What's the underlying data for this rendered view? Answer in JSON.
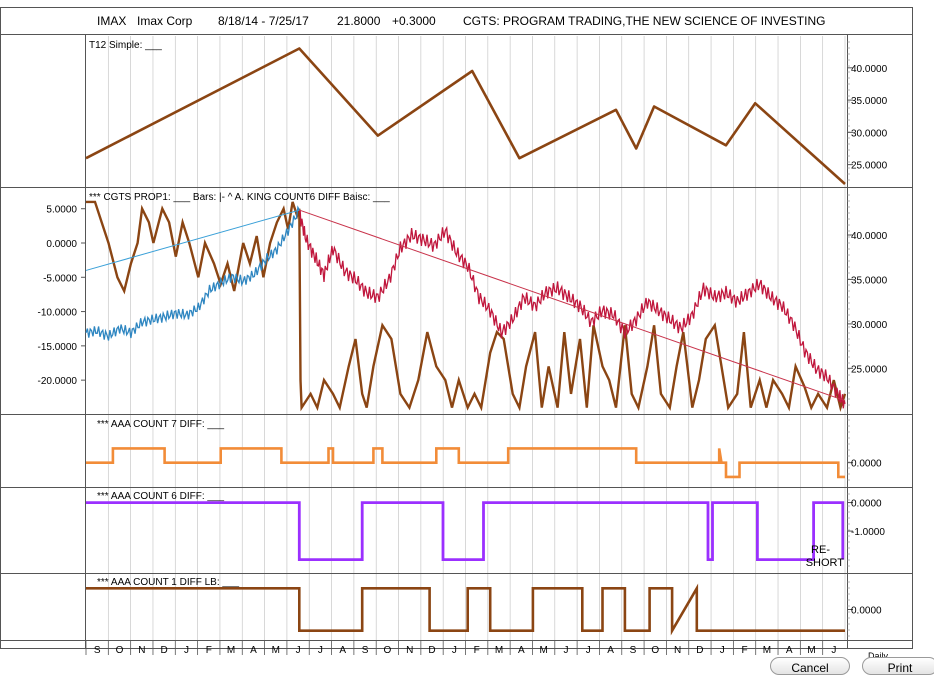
{
  "header": {
    "symbol": "IMAX",
    "company": "Imax Corp",
    "date_range": "8/18/14 - 7/25/17",
    "price": "21.8000",
    "change": "+0.3000",
    "title": "CGTS: PROGRAM TRADING,THE NEW SCIENCE OF INVESTING"
  },
  "colors": {
    "brown": "#8B4513",
    "crimson": "#C0163C",
    "blue": "#2E86C1",
    "orange": "#F28C38",
    "purple": "#9B30FF",
    "trend_red": "#C8324A",
    "trend_blue": "#3AA0D8"
  },
  "x_axis": {
    "labels": [
      "S",
      "O",
      "N",
      "D",
      "J",
      "F",
      "M",
      "A",
      "M",
      "J",
      "J",
      "A",
      "S",
      "O",
      "N",
      "D",
      "J",
      "F",
      "M",
      "A",
      "M",
      "J",
      "J",
      "A",
      "S",
      "O",
      "N",
      "D",
      "J",
      "F",
      "M",
      "A",
      "M",
      "J"
    ],
    "corner_label": "Daily"
  },
  "buttons": {
    "cancel": "Cancel",
    "print": "Print"
  },
  "chart_data": [
    {
      "id": "t12",
      "type": "line",
      "title": "T12 Simple: ___",
      "ylim": [
        22,
        44
      ],
      "ticks": [
        "40.0000",
        "35.0000",
        "30.0000",
        "25.0000"
      ],
      "tick_values": [
        40,
        35,
        30,
        25
      ],
      "series": [
        {
          "x": [
            0,
            9.5,
            13.0,
            17.2,
            19.3,
            23.6,
            24.5,
            25.3,
            28.5,
            29.8,
            33.8
          ],
          "y": [
            26.0,
            43.0,
            29.5,
            39.5,
            26.0,
            33.5,
            27.5,
            34.0,
            28.0,
            34.5,
            22.0
          ]
        }
      ]
    },
    {
      "id": "prop1",
      "type": "line",
      "title": "*** CGTS PROP1: ___   Bars: |-   ^ A. KING COUNT6 DIFF Baisc: ___",
      "left_ylim": [
        -24.5,
        7
      ],
      "right_ylim": [
        20.2,
        44.5
      ],
      "left_ticks": [
        "5.0000",
        "0.0000",
        "-5.0000",
        "-10.0000",
        "-15.0000",
        "-20.0000"
      ],
      "left_tick_values": [
        5,
        0,
        -5,
        -10,
        -15,
        -20
      ],
      "right_ticks": [
        "40.0000",
        "35.0000",
        "30.0000",
        "25.0000"
      ],
      "right_tick_values": [
        40,
        35,
        30,
        25
      ],
      "price_before": {
        "x": [
          0,
          0.5,
          1.0,
          1.5,
          2.0,
          2.5,
          3.0,
          3.5,
          4.0,
          4.5,
          5.0,
          5.5,
          6.0,
          6.5,
          7.0,
          7.5,
          8.0,
          8.5,
          9.0,
          9.5
        ],
        "y": [
          29.0,
          29.2,
          28.6,
          29.5,
          29.0,
          30.2,
          30.5,
          30.8,
          31.2,
          31.0,
          31.8,
          33.8,
          34.6,
          35.3,
          34.8,
          35.6,
          37.2,
          38.4,
          40.5,
          42.8
        ]
      },
      "price_after": {
        "x": [
          9.5,
          9.8,
          10.2,
          10.6,
          11.0,
          11.5,
          12.0,
          12.5,
          13.0,
          13.5,
          14.0,
          14.5,
          15.0,
          15.5,
          16.0,
          16.5,
          17.0,
          17.5,
          18.0,
          18.5,
          19.0,
          19.5,
          20.0,
          20.5,
          21.0,
          21.5,
          22.0,
          22.5,
          23.0,
          23.5,
          24.0,
          24.5,
          25.0,
          25.5,
          26.0,
          26.5,
          27.0,
          27.5,
          28.0,
          28.5,
          29.0,
          29.5,
          30.0,
          30.5,
          31.0,
          31.5,
          32.0,
          32.5,
          33.0,
          33.5,
          33.8
        ],
        "y": [
          42.5,
          39.5,
          37.5,
          35.5,
          38.5,
          36.0,
          35.0,
          33.5,
          33.0,
          35.0,
          38.5,
          40.0,
          39.5,
          38.8,
          40.5,
          38.0,
          36.5,
          33.0,
          31.5,
          29.0,
          30.5,
          33.0,
          32.0,
          33.6,
          34.0,
          33.0,
          32.0,
          30.2,
          31.5,
          31.0,
          29.0,
          30.5,
          32.5,
          31.5,
          30.5,
          29.5,
          31.0,
          34.0,
          33.0,
          33.5,
          32.5,
          33.5,
          34.5,
          33.0,
          32.0,
          30.0,
          27.0,
          25.0,
          24.0,
          22.0,
          21.0
        ]
      },
      "count_line": {
        "x": [
          0,
          0.4,
          0.7,
          1.0,
          1.4,
          1.7,
          2.0,
          2.3,
          2.5,
          2.8,
          3.0,
          3.4,
          3.7,
          4.0,
          4.3,
          4.6,
          5.0,
          5.3,
          5.7,
          6.0,
          6.3,
          6.6,
          7.0,
          7.3,
          7.6,
          7.9,
          8.2,
          8.5,
          8.8,
          9.0,
          9.2,
          9.4,
          9.5,
          9.55,
          9.6,
          10.0,
          10.3,
          10.6,
          11.0,
          11.3,
          11.7,
          12.0,
          12.3,
          12.5,
          12.8,
          13.2,
          13.6,
          14.0,
          14.4,
          14.8,
          15.2,
          15.6,
          16.0,
          16.3,
          16.6,
          17.0,
          17.3,
          17.6,
          18.0,
          18.3,
          18.6,
          19.0,
          19.3,
          19.6,
          20.0,
          20.3,
          20.6,
          21.0,
          21.3,
          21.6,
          22.0,
          22.3,
          22.6,
          23.0,
          23.3,
          23.6,
          24.0,
          24.3,
          24.6,
          25.0,
          25.3,
          25.6,
          26.0,
          26.3,
          26.6,
          27.0,
          27.3,
          27.6,
          28.0,
          28.3,
          28.6,
          29.0,
          29.3,
          29.6,
          30.0,
          30.3,
          30.6,
          31.0,
          31.3,
          31.6,
          32.0,
          32.3,
          32.6,
          33.0,
          33.3,
          33.6,
          33.8
        ],
        "y": [
          6,
          6,
          3,
          0,
          -5,
          -7,
          -3,
          0,
          5,
          3,
          0,
          5,
          3,
          -2,
          3,
          0,
          -5,
          0,
          -3,
          -6,
          -3,
          -7,
          0,
          -3,
          1,
          -5,
          0,
          3,
          5,
          2,
          6,
          4,
          5,
          -20,
          -24,
          -22,
          -24,
          -20,
          -22,
          -24,
          -18,
          -14,
          -22,
          -24,
          -18,
          -12,
          -14,
          -22,
          -24,
          -20,
          -13,
          -18,
          -20,
          -24,
          -20,
          -24,
          -22,
          -24,
          -16,
          -13,
          -14,
          -22,
          -24,
          -18,
          -13,
          -24,
          -18,
          -24,
          -13,
          -22,
          -14,
          -24,
          -12,
          -18,
          -20,
          -24,
          -12,
          -22,
          -24,
          -18,
          -12,
          -22,
          -24,
          -18,
          -13,
          -24,
          -20,
          -14,
          -12,
          -18,
          -24,
          -22,
          -13,
          -24,
          -20,
          -24,
          -20,
          -22,
          -24,
          -18,
          -21,
          -24,
          -22,
          -24,
          -20,
          -24,
          -22
        ]
      },
      "trend_blue": {
        "x": [
          0,
          9.5
        ],
        "y": [
          -4.0,
          4.8
        ]
      },
      "trend_red": {
        "x": [
          9.5,
          33.8
        ],
        "y": [
          4.8,
          -23.0
        ]
      }
    },
    {
      "id": "aaa7",
      "type": "line",
      "title": "*** AAA COUNT 7 DIFF: ___",
      "ylim": [
        -1.5,
        3
      ],
      "ticks": [
        "0.0000"
      ],
      "tick_values": [
        0
      ],
      "series": [
        {
          "x": [
            0,
            1.2,
            1.2,
            3.5,
            3.5,
            6.0,
            6.0,
            8.7,
            8.7,
            10.0,
            10.0,
            10.8,
            10.8,
            11.0,
            11.0,
            12.8,
            12.8,
            13.2,
            13.2,
            15.6,
            15.6,
            16.6,
            16.6,
            18.8,
            18.8,
            24.5,
            24.5,
            28.2,
            28.2,
            28.3,
            28.3,
            28.5,
            28.5,
            29.1,
            29.1,
            29.8,
            29.8,
            33.5,
            33.5,
            33.8
          ],
          "y": [
            0,
            0,
            1,
            1,
            0,
            0,
            1,
            1,
            0,
            0,
            0,
            0,
            1,
            1,
            0,
            0,
            1,
            1,
            0,
            0,
            1,
            1,
            0,
            0,
            1,
            1,
            0,
            0,
            1,
            0,
            0,
            0,
            -1,
            -1,
            0,
            0,
            0,
            0,
            -1,
            -1
          ]
        }
      ]
    },
    {
      "id": "aaa6",
      "type": "line",
      "title": "*** AAA COUNT 6 DIFF: ___",
      "ylim": [
        -2.4,
        0.3
      ],
      "ticks": [
        "0.0000",
        "-1.0000"
      ],
      "tick_values": [
        0,
        -1
      ],
      "annotation": "RE-\nSHORT",
      "series": [
        {
          "x": [
            0,
            9.5,
            9.5,
            12.3,
            12.3,
            15.9,
            15.9,
            17.7,
            17.7,
            27.7,
            27.7,
            27.9,
            27.9,
            29.9,
            29.9,
            32.4,
            32.4,
            33.7,
            33.7
          ],
          "y": [
            0,
            0,
            -2,
            -2,
            0,
            0,
            -2,
            -2,
            0,
            0,
            -2,
            -2,
            0,
            0,
            -2,
            -2,
            0,
            0,
            -2
          ]
        }
      ]
    },
    {
      "id": "aaa1",
      "type": "line",
      "title": "*** AAA COUNT 1 DIFF LB: ___",
      "ylim": [
        -1.3,
        1.3
      ],
      "ticks": [
        "0.0000"
      ],
      "tick_values": [
        0
      ],
      "series": [
        {
          "x": [
            0,
            9.5,
            9.5,
            12.3,
            12.3,
            15.3,
            15.3,
            17.0,
            17.0,
            18.0,
            18.0,
            19.9,
            19.9,
            22.1,
            22.1,
            23.0,
            23.0,
            24.0,
            24.0,
            25.1,
            25.1,
            26.1,
            26.1,
            27.2,
            27.2,
            33.8
          ],
          "y": [
            1,
            1,
            -1,
            -1,
            1,
            1,
            -1,
            -1,
            1,
            1,
            -1,
            -1,
            1,
            1,
            -1,
            -1,
            1,
            1,
            -1,
            -1,
            1,
            1,
            -1,
            1,
            -1,
            -1
          ]
        }
      ]
    }
  ]
}
